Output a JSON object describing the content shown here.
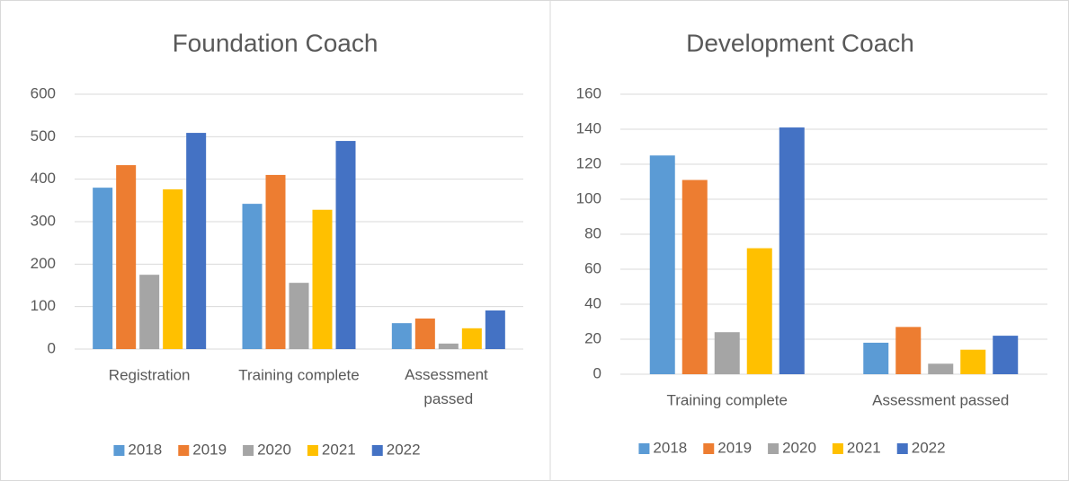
{
  "chart_data": [
    {
      "type": "bar",
      "title": "Foundation Coach",
      "categories": [
        "Registration",
        "Training complete",
        "Assessment passed"
      ],
      "series": [
        {
          "name": "2018",
          "color": "#5b9bd5",
          "values": [
            380,
            342,
            61
          ]
        },
        {
          "name": "2019",
          "color": "#ed7d31",
          "values": [
            433,
            410,
            72
          ]
        },
        {
          "name": "2020",
          "color": "#a5a5a5",
          "values": [
            175,
            156,
            13
          ]
        },
        {
          "name": "2021",
          "color": "#ffc000",
          "values": [
            376,
            328,
            49
          ]
        },
        {
          "name": "2022",
          "color": "#4472c4",
          "values": [
            509,
            490,
            91
          ]
        }
      ],
      "ylim": [
        0,
        600
      ],
      "yticks": [
        0,
        100,
        200,
        300,
        400,
        500,
        600
      ],
      "grid": true,
      "legend": "bottom"
    },
    {
      "type": "bar",
      "title": "Development Coach",
      "categories": [
        "Training complete",
        "Assessment passed"
      ],
      "series": [
        {
          "name": "2018",
          "color": "#5b9bd5",
          "values": [
            125,
            18
          ]
        },
        {
          "name": "2019",
          "color": "#ed7d31",
          "values": [
            111,
            27
          ]
        },
        {
          "name": "2020",
          "color": "#a5a5a5",
          "values": [
            24,
            6
          ]
        },
        {
          "name": "2021",
          "color": "#ffc000",
          "values": [
            72,
            14
          ]
        },
        {
          "name": "2022",
          "color": "#4472c4",
          "values": [
            141,
            22
          ]
        }
      ],
      "ylim": [
        0,
        160
      ],
      "yticks": [
        0,
        20,
        40,
        60,
        80,
        100,
        120,
        140,
        160
      ],
      "grid": true,
      "legend": "bottom"
    }
  ]
}
